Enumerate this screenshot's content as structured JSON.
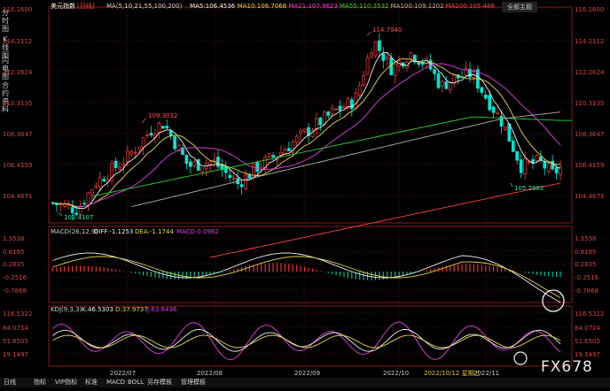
{
  "header": {
    "title": "美元指数",
    "period": "[日线]",
    "ma_items": [
      {
        "text": "MA(5,10,21,55,100,200)",
        "color": "#d0d0d0"
      },
      {
        "text": "MA5:106.4536",
        "color": "#f0f0f0"
      },
      {
        "text": "MA10:106.7068",
        "color": "#e8d84a"
      },
      {
        "text": "MA21:107.9623",
        "color": "#e040e0"
      },
      {
        "text": "MA55:110.3532",
        "color": "#30d030"
      },
      {
        "text": "MA100:109.1202",
        "color": "#b0b0b0"
      },
      {
        "text": "MA200:105.486",
        "color": "#ff4040"
      }
    ],
    "top_right_button": "全部主题"
  },
  "side_tabs": {
    "tab1": "分时图",
    "tab2": "K线图",
    "tab3": "闪电图",
    "tab4": "合约资料"
  },
  "price_axis": {
    "left": [
      "116.1600",
      "114.2112",
      "112.2624",
      "110.3135",
      "108.3647",
      "106.4159",
      "104.4671"
    ],
    "right": [
      "116.1600",
      "114.2112",
      "112.2624",
      "110.3135",
      "108.3647",
      "106.4159",
      "104.4671"
    ]
  },
  "price_annotations": {
    "high1": "109.3032",
    "high2": "114.7940",
    "low1": "103.4107",
    "low2": "105.2982"
  },
  "macd": {
    "label": "MACD(26,12,9)",
    "diff": "DIFF:-1.1253",
    "dea": "DEA:-1.1744",
    "macd": "MACD:0.0982",
    "axis_left": [
      "1.3538",
      "0.8185",
      "0.2835",
      "-0.2516",
      "-0.7868"
    ],
    "axis_right": [
      "1.3538",
      "0.8185",
      "0.2835",
      "-0.2516",
      "-0.7868"
    ]
  },
  "kdj": {
    "label": "KDJ(9,3,3)",
    "k": "K:46.5303",
    "d": "D:37.9737",
    "j": "J:63.6436",
    "axis_left": [
      "116.5322",
      "84.0714",
      "51.6505",
      "19.1497"
    ],
    "axis_right": [
      "116.5322",
      "84.0714",
      "51.6505",
      "19.1497"
    ]
  },
  "date_axis": [
    "2022/07",
    "2022/08",
    "2022/09",
    "2022/10",
    "2022/10/12 星期三",
    "2022/11"
  ],
  "bottom_tabs": [
    "日线",
    "指标",
    "VIP指标",
    "标准",
    "MACD",
    "BOLL",
    "另存模板",
    "管理模板"
  ],
  "watermark": "FX678",
  "colors": {
    "up": "#ff3a3a",
    "down": "#00e6d2",
    "grid": "#8a1818",
    "accent_red": "#ff3030"
  }
}
